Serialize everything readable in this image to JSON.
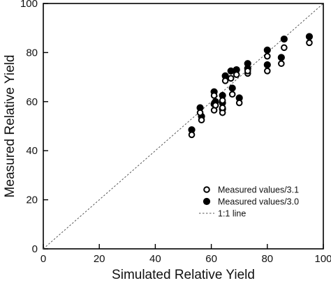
{
  "chart_data": {
    "type": "scatter",
    "title": "",
    "xlabel": "Simulated Relative Yield",
    "ylabel": "Measured Relative Yield",
    "xlim": [
      0,
      100
    ],
    "ylim": [
      0,
      100
    ],
    "xticks": [
      0,
      20,
      40,
      60,
      80,
      100
    ],
    "yticks": [
      0,
      20,
      40,
      60,
      80,
      100
    ],
    "x_tick_labels": [
      "0",
      "20",
      "40",
      "60",
      "80",
      "100"
    ],
    "y_tick_labels": [
      "0",
      "20",
      "40",
      "60",
      "80",
      "100"
    ],
    "grid": false,
    "legend": {
      "position": "bottom-right"
    },
    "series": [
      {
        "name": "Measured values/3.1",
        "marker": "open-circle",
        "color": "#000000",
        "points": [
          [
            53,
            46.5
          ],
          [
            56,
            55.5
          ],
          [
            56.5,
            52.5
          ],
          [
            61,
            62.5
          ],
          [
            61,
            56.5
          ],
          [
            61.5,
            58.5
          ],
          [
            64,
            55.5
          ],
          [
            64,
            57.5
          ],
          [
            64,
            60.5
          ],
          [
            65,
            68.5
          ],
          [
            67,
            69.5
          ],
          [
            67.5,
            63
          ],
          [
            69,
            71
          ],
          [
            70,
            59.5
          ],
          [
            73,
            71.5
          ],
          [
            73,
            72.5
          ],
          [
            80,
            72.5
          ],
          [
            80,
            78.5
          ],
          [
            85,
            75.5
          ],
          [
            86,
            82
          ],
          [
            95,
            84
          ]
        ]
      },
      {
        "name": "Measured values/3.0",
        "marker": "filled-circle",
        "color": "#000000",
        "points": [
          [
            53,
            48.5
          ],
          [
            56,
            57.5
          ],
          [
            56.5,
            54
          ],
          [
            61,
            64
          ],
          [
            61,
            59
          ],
          [
            61.5,
            60
          ],
          [
            64,
            57
          ],
          [
            64,
            59.5
          ],
          [
            64,
            62.5
          ],
          [
            65,
            70.5
          ],
          [
            67,
            72.5
          ],
          [
            67.5,
            65.5
          ],
          [
            69,
            73
          ],
          [
            70,
            61.5
          ],
          [
            73,
            73.5
          ],
          [
            73,
            75.5
          ],
          [
            80,
            75
          ],
          [
            80,
            81
          ],
          [
            85,
            78
          ],
          [
            86,
            85.5
          ],
          [
            95,
            86.5
          ]
        ]
      },
      {
        "name": "1:1 line",
        "style": "dashed",
        "color": "#000000",
        "points": [
          [
            0,
            0
          ],
          [
            100,
            100
          ]
        ]
      }
    ]
  }
}
